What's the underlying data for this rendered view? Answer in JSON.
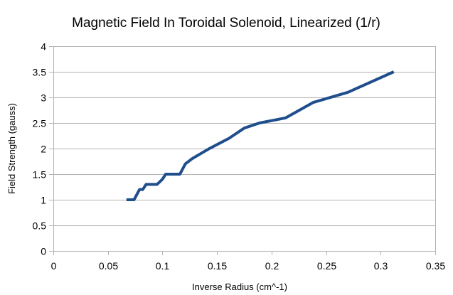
{
  "chart_data": {
    "type": "line",
    "title": "Magnetic Field In Toroidal Solenoid, Linearized (1/r)",
    "xlabel": "Inverse Radius (cm^-1)",
    "ylabel": "Field Strength (gauss)",
    "xlim": [
      0,
      0.35
    ],
    "ylim": [
      0,
      4
    ],
    "xticks": [
      0,
      0.05,
      0.1,
      0.15,
      0.2,
      0.25,
      0.3,
      0.35
    ],
    "xtick_labels": [
      "0",
      "0.05",
      "0.1",
      "0.15",
      "0.2",
      "0.25",
      "0.3",
      "0.35"
    ],
    "yticks": [
      0,
      0.5,
      1,
      1.5,
      2,
      2.5,
      3,
      3.5,
      4
    ],
    "ytick_labels": [
      "0",
      "0.5",
      "1",
      "1.5",
      "2",
      "2.5",
      "3",
      "3.5",
      "4"
    ],
    "grid": "horizontal",
    "legend": "none",
    "series": [
      {
        "name": "Field Strength",
        "color": "#1f4e8c",
        "x": [
          0.067,
          0.074,
          0.079,
          0.082,
          0.085,
          0.088,
          0.095,
          0.1,
          0.103,
          0.109,
          0.116,
          0.121,
          0.127,
          0.135,
          0.143,
          0.152,
          0.161,
          0.175,
          0.189,
          0.213,
          0.238,
          0.27,
          0.312
        ],
        "y": [
          1.0,
          1.0,
          1.2,
          1.2,
          1.3,
          1.3,
          1.3,
          1.4,
          1.5,
          1.5,
          1.5,
          1.7,
          1.8,
          1.9,
          2.0,
          2.1,
          2.2,
          2.4,
          2.5,
          2.6,
          2.9,
          3.1,
          3.5
        ]
      }
    ]
  }
}
